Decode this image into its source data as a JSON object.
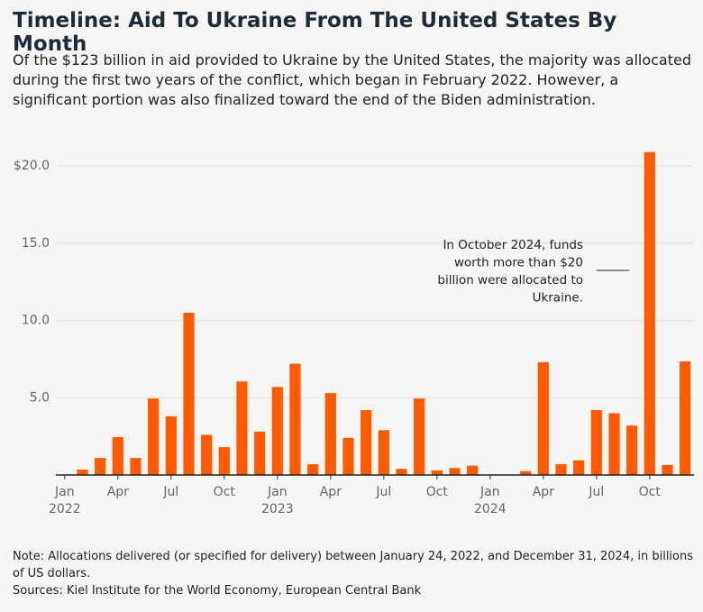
{
  "chart_data": {
    "type": "bar",
    "title": "Timeline: Aid To Ukraine From The United States By Month",
    "subtitle": "Of the $123 billion in aid provided to Ukraine by the United States, the majority was allocated during the first two years of the conflict, which began in February 2022. However, a significant portion was also finalized toward the end of the Biden administration.",
    "categories": [
      "Jan",
      null,
      null,
      "Apr",
      null,
      null,
      "Jul",
      null,
      null,
      "Oct",
      null,
      null,
      "Jan",
      null,
      null,
      "Apr",
      null,
      null,
      "Jul",
      null,
      null,
      "Oct",
      null,
      null,
      "Jan",
      null,
      null,
      "Apr",
      null,
      null,
      "Jul",
      null,
      null,
      "Oct",
      null,
      null
    ],
    "years": [
      "2022",
      null,
      null,
      null,
      null,
      null,
      null,
      null,
      null,
      null,
      null,
      null,
      "2023",
      null,
      null,
      null,
      null,
      null,
      null,
      null,
      null,
      null,
      null,
      null,
      "2024",
      null,
      null,
      null,
      null,
      null,
      null,
      null,
      null,
      null,
      null,
      null
    ],
    "values": [
      0,
      0.35,
      1.1,
      2.45,
      1.1,
      4.95,
      3.8,
      10.5,
      2.6,
      1.8,
      6.05,
      2.8,
      5.7,
      7.2,
      0.7,
      5.3,
      2.4,
      4.2,
      2.9,
      0.4,
      4.95,
      0.3,
      0.45,
      0.6,
      0,
      0,
      0.25,
      7.3,
      0.7,
      0.95,
      4.2,
      4.0,
      3.2,
      20.9,
      0.65,
      7.35
    ],
    "color": "#ff5a00",
    "ylim": [
      0,
      21
    ],
    "yticks": [
      {
        "value": 5,
        "label": "5.0"
      },
      {
        "value": 10,
        "label": "10.0"
      },
      {
        "value": 15,
        "label": "15.0"
      },
      {
        "value": 20,
        "label": "$20.0"
      }
    ],
    "grid": true,
    "annotation": [
      "In October 2024, funds",
      "worth more than $20",
      "billion were allocated to",
      "Ukraine."
    ],
    "note": "Note: Allocations delivered (or specified for delivery) between January 24, 2022, and December 31, 2024, in billions of US dollars.",
    "source": "Sources: Kiel Institute for the World Economy, European Central Bank"
  }
}
